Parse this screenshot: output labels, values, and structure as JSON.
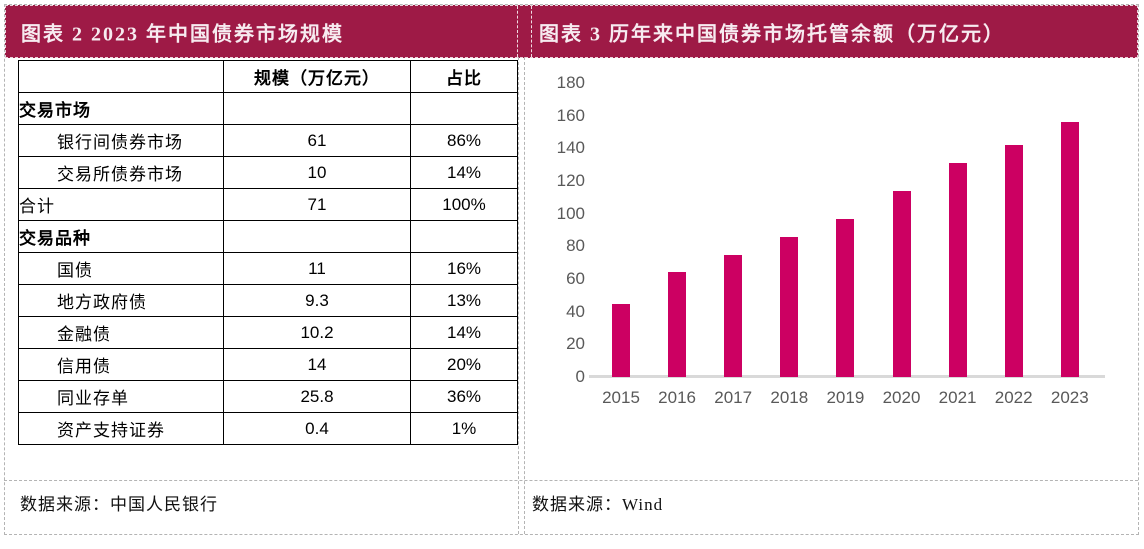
{
  "colors": {
    "header_bg": "#9E1A46",
    "header_text": "#F7EBF0",
    "bar": "#CC0062",
    "axis_text": "#595959",
    "axis_line": "#D9D9D9",
    "table_border": "#000000",
    "panel_border": "#B4B4B4"
  },
  "left_panel": {
    "title": "图表 2 2023 年中国债券市场规模",
    "table": {
      "headers": [
        "",
        "规模（万亿元）",
        "占比"
      ],
      "rows": [
        {
          "label": "交易市场",
          "scale": "",
          "share": "",
          "style": "section"
        },
        {
          "label": "银行间债券市场",
          "scale": "61",
          "share": "86%",
          "style": "indent"
        },
        {
          "label": "交易所债券市场",
          "scale": "10",
          "share": "14%",
          "style": "indent"
        },
        {
          "label": "合计",
          "scale": "71",
          "share": "100%",
          "style": "plain"
        },
        {
          "label": "交易品种",
          "scale": "",
          "share": "",
          "style": "section"
        },
        {
          "label": "国债",
          "scale": "11",
          "share": "16%",
          "style": "indent"
        },
        {
          "label": "地方政府债",
          "scale": "9.3",
          "share": "13%",
          "style": "indent"
        },
        {
          "label": "金融债",
          "scale": "10.2",
          "share": "14%",
          "style": "indent"
        },
        {
          "label": "信用债",
          "scale": "14",
          "share": "20%",
          "style": "indent"
        },
        {
          "label": "同业存单",
          "scale": "25.8",
          "share": "36%",
          "style": "indent"
        },
        {
          "label": "资产支持证券",
          "scale": "0.4",
          "share": "1%",
          "style": "indent"
        }
      ]
    },
    "source": "数据来源：中国人民银行"
  },
  "right_panel": {
    "title": "图表 3 历年来中国债券市场托管余额（万亿元）",
    "source": "数据来源：Wind"
  },
  "chart_data": {
    "type": "bar",
    "title": "历年来中国债券市场托管余额（万亿元）",
    "categories": [
      "2015",
      "2016",
      "2017",
      "2018",
      "2019",
      "2020",
      "2021",
      "2022",
      "2023"
    ],
    "values": [
      45,
      64,
      75,
      86,
      97,
      114,
      131,
      142,
      156
    ],
    "xlabel": "",
    "ylabel": "",
    "ylim": [
      0,
      180
    ],
    "yticks": [
      0,
      20,
      40,
      60,
      80,
      100,
      120,
      140,
      160,
      180
    ],
    "grid": false,
    "legend": false,
    "bar_color": "#CC0062"
  }
}
